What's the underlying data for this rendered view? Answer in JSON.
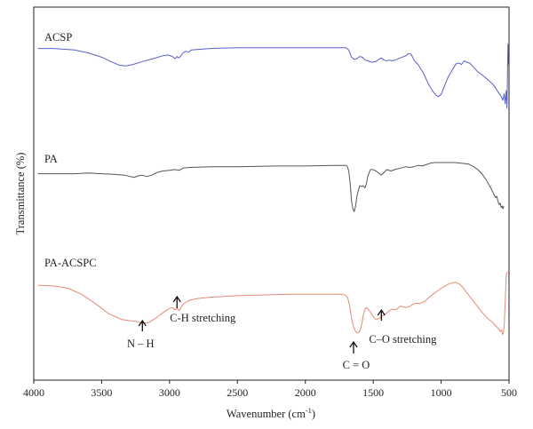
{
  "chart_data": {
    "type": "line",
    "title": "",
    "xlabel": "Wavenumber (cm",
    "xlabel_sup": "-1",
    "xlabel_end": ")",
    "ylabel": "Transmittance (%)",
    "xlim": [
      4000,
      500
    ],
    "x_reversed": true,
    "y_ticks": false,
    "grid": false,
    "x_ticks": [
      "4000",
      "3500",
      "3000",
      "2500",
      "2000",
      "1500",
      "1000",
      "500"
    ],
    "series": [
      {
        "name": "ACSP",
        "color": "#5a5fc8",
        "points": [
          [
            3970,
            8
          ],
          [
            3850,
            8
          ],
          [
            3700,
            10
          ],
          [
            3600,
            14
          ],
          [
            3500,
            20
          ],
          [
            3420,
            27
          ],
          [
            3370,
            31
          ],
          [
            3320,
            32
          ],
          [
            3270,
            30
          ],
          [
            3200,
            26
          ],
          [
            3120,
            22
          ],
          [
            3050,
            18
          ],
          [
            3010,
            17
          ],
          [
            2980,
            19
          ],
          [
            2960,
            22
          ],
          [
            2945,
            19
          ],
          [
            2930,
            21
          ],
          [
            2900,
            14
          ],
          [
            2880,
            12
          ],
          [
            2860,
            13
          ],
          [
            2840,
            10
          ],
          [
            2700,
            8
          ],
          [
            2500,
            7
          ],
          [
            2200,
            7
          ],
          [
            2000,
            7
          ],
          [
            1800,
            7
          ],
          [
            1700,
            7
          ],
          [
            1680,
            10
          ],
          [
            1660,
            20
          ],
          [
            1640,
            23
          ],
          [
            1620,
            22
          ],
          [
            1600,
            19
          ],
          [
            1580,
            20
          ],
          [
            1560,
            24
          ],
          [
            1540,
            25
          ],
          [
            1510,
            27
          ],
          [
            1480,
            26
          ],
          [
            1460,
            23
          ],
          [
            1440,
            21
          ],
          [
            1420,
            24
          ],
          [
            1400,
            25
          ],
          [
            1380,
            24
          ],
          [
            1360,
            25
          ],
          [
            1340,
            24
          ],
          [
            1300,
            21
          ],
          [
            1260,
            18
          ],
          [
            1240,
            15
          ],
          [
            1220,
            16
          ],
          [
            1200,
            24
          ],
          [
            1170,
            30
          ],
          [
            1130,
            42
          ],
          [
            1090,
            58
          ],
          [
            1060,
            67
          ],
          [
            1040,
            72
          ],
          [
            1020,
            74
          ],
          [
            1000,
            71
          ],
          [
            980,
            62
          ],
          [
            950,
            48
          ],
          [
            920,
            38
          ],
          [
            890,
            29
          ],
          [
            870,
            28
          ],
          [
            850,
            30
          ],
          [
            830,
            25
          ],
          [
            810,
            27
          ],
          [
            790,
            28
          ],
          [
            770,
            32
          ],
          [
            750,
            36
          ],
          [
            730,
            40
          ],
          [
            700,
            44
          ],
          [
            680,
            47
          ],
          [
            650,
            52
          ],
          [
            620,
            57
          ],
          [
            600,
            62
          ],
          [
            580,
            68
          ],
          [
            560,
            73
          ],
          [
            545,
            79
          ],
          [
            535,
            70
          ],
          [
            528,
            84
          ],
          [
            520,
            66
          ],
          [
            515,
            90
          ],
          [
            508,
            2
          ],
          [
            505,
            30
          ]
        ]
      },
      {
        "name": "PA",
        "color": "#555555",
        "points": [
          [
            3970,
            16
          ],
          [
            3850,
            16
          ],
          [
            3700,
            16
          ],
          [
            3600,
            15
          ],
          [
            3500,
            16
          ],
          [
            3400,
            17
          ],
          [
            3330,
            18
          ],
          [
            3290,
            20
          ],
          [
            3260,
            21
          ],
          [
            3230,
            19
          ],
          [
            3200,
            18
          ],
          [
            3170,
            20
          ],
          [
            3130,
            18
          ],
          [
            3090,
            14
          ],
          [
            3050,
            12
          ],
          [
            3000,
            11
          ],
          [
            2960,
            10
          ],
          [
            2930,
            11
          ],
          [
            2900,
            8
          ],
          [
            2850,
            7
          ],
          [
            2700,
            6
          ],
          [
            2500,
            6
          ],
          [
            2200,
            5
          ],
          [
            2000,
            5
          ],
          [
            1800,
            4
          ],
          [
            1700,
            4
          ],
          [
            1690,
            6
          ],
          [
            1680,
            12
          ],
          [
            1670,
            30
          ],
          [
            1660,
            55
          ],
          [
            1650,
            66
          ],
          [
            1640,
            70
          ],
          [
            1630,
            62
          ],
          [
            1620,
            48
          ],
          [
            1610,
            40
          ],
          [
            1600,
            33
          ],
          [
            1590,
            34
          ],
          [
            1575,
            33
          ],
          [
            1560,
            36
          ],
          [
            1550,
            30
          ],
          [
            1540,
            20
          ],
          [
            1530,
            14
          ],
          [
            1520,
            10
          ],
          [
            1500,
            10
          ],
          [
            1480,
            12
          ],
          [
            1460,
            15
          ],
          [
            1440,
            18
          ],
          [
            1420,
            14
          ],
          [
            1400,
            10
          ],
          [
            1370,
            12
          ],
          [
            1340,
            10
          ],
          [
            1300,
            8
          ],
          [
            1260,
            6
          ],
          [
            1230,
            7
          ],
          [
            1200,
            6
          ],
          [
            1170,
            4
          ],
          [
            1140,
            5
          ],
          [
            1110,
            3
          ],
          [
            1080,
            1
          ],
          [
            1050,
            0
          ],
          [
            1000,
            0
          ],
          [
            950,
            0
          ],
          [
            900,
            0
          ],
          [
            850,
            1
          ],
          [
            800,
            2
          ],
          [
            760,
            6
          ],
          [
            730,
            10
          ],
          [
            700,
            16
          ],
          [
            670,
            24
          ],
          [
            640,
            34
          ],
          [
            620,
            42
          ],
          [
            600,
            50
          ],
          [
            590,
            48
          ],
          [
            580,
            56
          ],
          [
            572,
            60
          ],
          [
            565,
            58
          ],
          [
            558,
            64
          ],
          [
            550,
            62
          ],
          [
            545,
            66
          ],
          [
            538,
            62
          ]
        ]
      },
      {
        "name": "PA-ACSPC",
        "color": "#e58a76",
        "points": [
          [
            3970,
            18
          ],
          [
            3850,
            19
          ],
          [
            3750,
            22
          ],
          [
            3650,
            30
          ],
          [
            3550,
            42
          ],
          [
            3450,
            56
          ],
          [
            3350,
            64
          ],
          [
            3280,
            66
          ],
          [
            3230,
            67
          ],
          [
            3200,
            69
          ],
          [
            3150,
            68
          ],
          [
            3100,
            62
          ],
          [
            3050,
            55
          ],
          [
            3000,
            49
          ],
          [
            2980,
            48
          ],
          [
            2960,
            51
          ],
          [
            2945,
            49
          ],
          [
            2930,
            52
          ],
          [
            2910,
            46
          ],
          [
            2890,
            42
          ],
          [
            2870,
            40
          ],
          [
            2850,
            38
          ],
          [
            2800,
            36
          ],
          [
            2700,
            34
          ],
          [
            2500,
            32
          ],
          [
            2300,
            31
          ],
          [
            2100,
            30
          ],
          [
            1900,
            30
          ],
          [
            1750,
            30
          ],
          [
            1710,
            31
          ],
          [
            1690,
            34
          ],
          [
            1680,
            40
          ],
          [
            1670,
            50
          ],
          [
            1660,
            62
          ],
          [
            1650,
            70
          ],
          [
            1640,
            76
          ],
          [
            1630,
            80
          ],
          [
            1615,
            82
          ],
          [
            1600,
            80
          ],
          [
            1590,
            74
          ],
          [
            1580,
            66
          ],
          [
            1570,
            56
          ],
          [
            1560,
            50
          ],
          [
            1550,
            48
          ],
          [
            1540,
            50
          ],
          [
            1520,
            54
          ],
          [
            1500,
            60
          ],
          [
            1480,
            64
          ],
          [
            1460,
            63
          ],
          [
            1440,
            60
          ],
          [
            1420,
            58
          ],
          [
            1400,
            55
          ],
          [
            1380,
            52
          ],
          [
            1360,
            50
          ],
          [
            1340,
            51
          ],
          [
            1320,
            49
          ],
          [
            1300,
            46
          ],
          [
            1280,
            47
          ],
          [
            1260,
            48
          ],
          [
            1240,
            47
          ],
          [
            1220,
            45
          ],
          [
            1200,
            43
          ],
          [
            1180,
            42
          ],
          [
            1160,
            43
          ],
          [
            1140,
            41
          ],
          [
            1120,
            40
          ],
          [
            1100,
            36
          ],
          [
            1080,
            33
          ],
          [
            1060,
            30
          ],
          [
            1040,
            27
          ],
          [
            1020,
            25
          ],
          [
            1000,
            22
          ],
          [
            980,
            20
          ],
          [
            960,
            18
          ],
          [
            940,
            16
          ],
          [
            920,
            15
          ],
          [
            900,
            14
          ],
          [
            880,
            15
          ],
          [
            860,
            17
          ],
          [
            840,
            21
          ],
          [
            820,
            26
          ],
          [
            790,
            33
          ],
          [
            760,
            40
          ],
          [
            730,
            47
          ],
          [
            700,
            54
          ],
          [
            680,
            58
          ],
          [
            660,
            62
          ],
          [
            640,
            65
          ],
          [
            620,
            68
          ],
          [
            600,
            72
          ],
          [
            580,
            76
          ],
          [
            565,
            80
          ],
          [
            555,
            78
          ],
          [
            548,
            84
          ],
          [
            542,
            82
          ],
          [
            535,
            72
          ],
          [
            528,
            40
          ],
          [
            520,
            4
          ],
          [
            512,
            0
          ]
        ]
      }
    ],
    "annotations": [
      {
        "id": "nh",
        "text": "N – H",
        "x": 3200
      },
      {
        "id": "ch",
        "text": "C-H stretching",
        "x": 2945
      },
      {
        "id": "co",
        "text": "C = O",
        "x": 1645
      },
      {
        "id": "cos",
        "text": "C–O stretching",
        "x": 1440
      }
    ]
  }
}
